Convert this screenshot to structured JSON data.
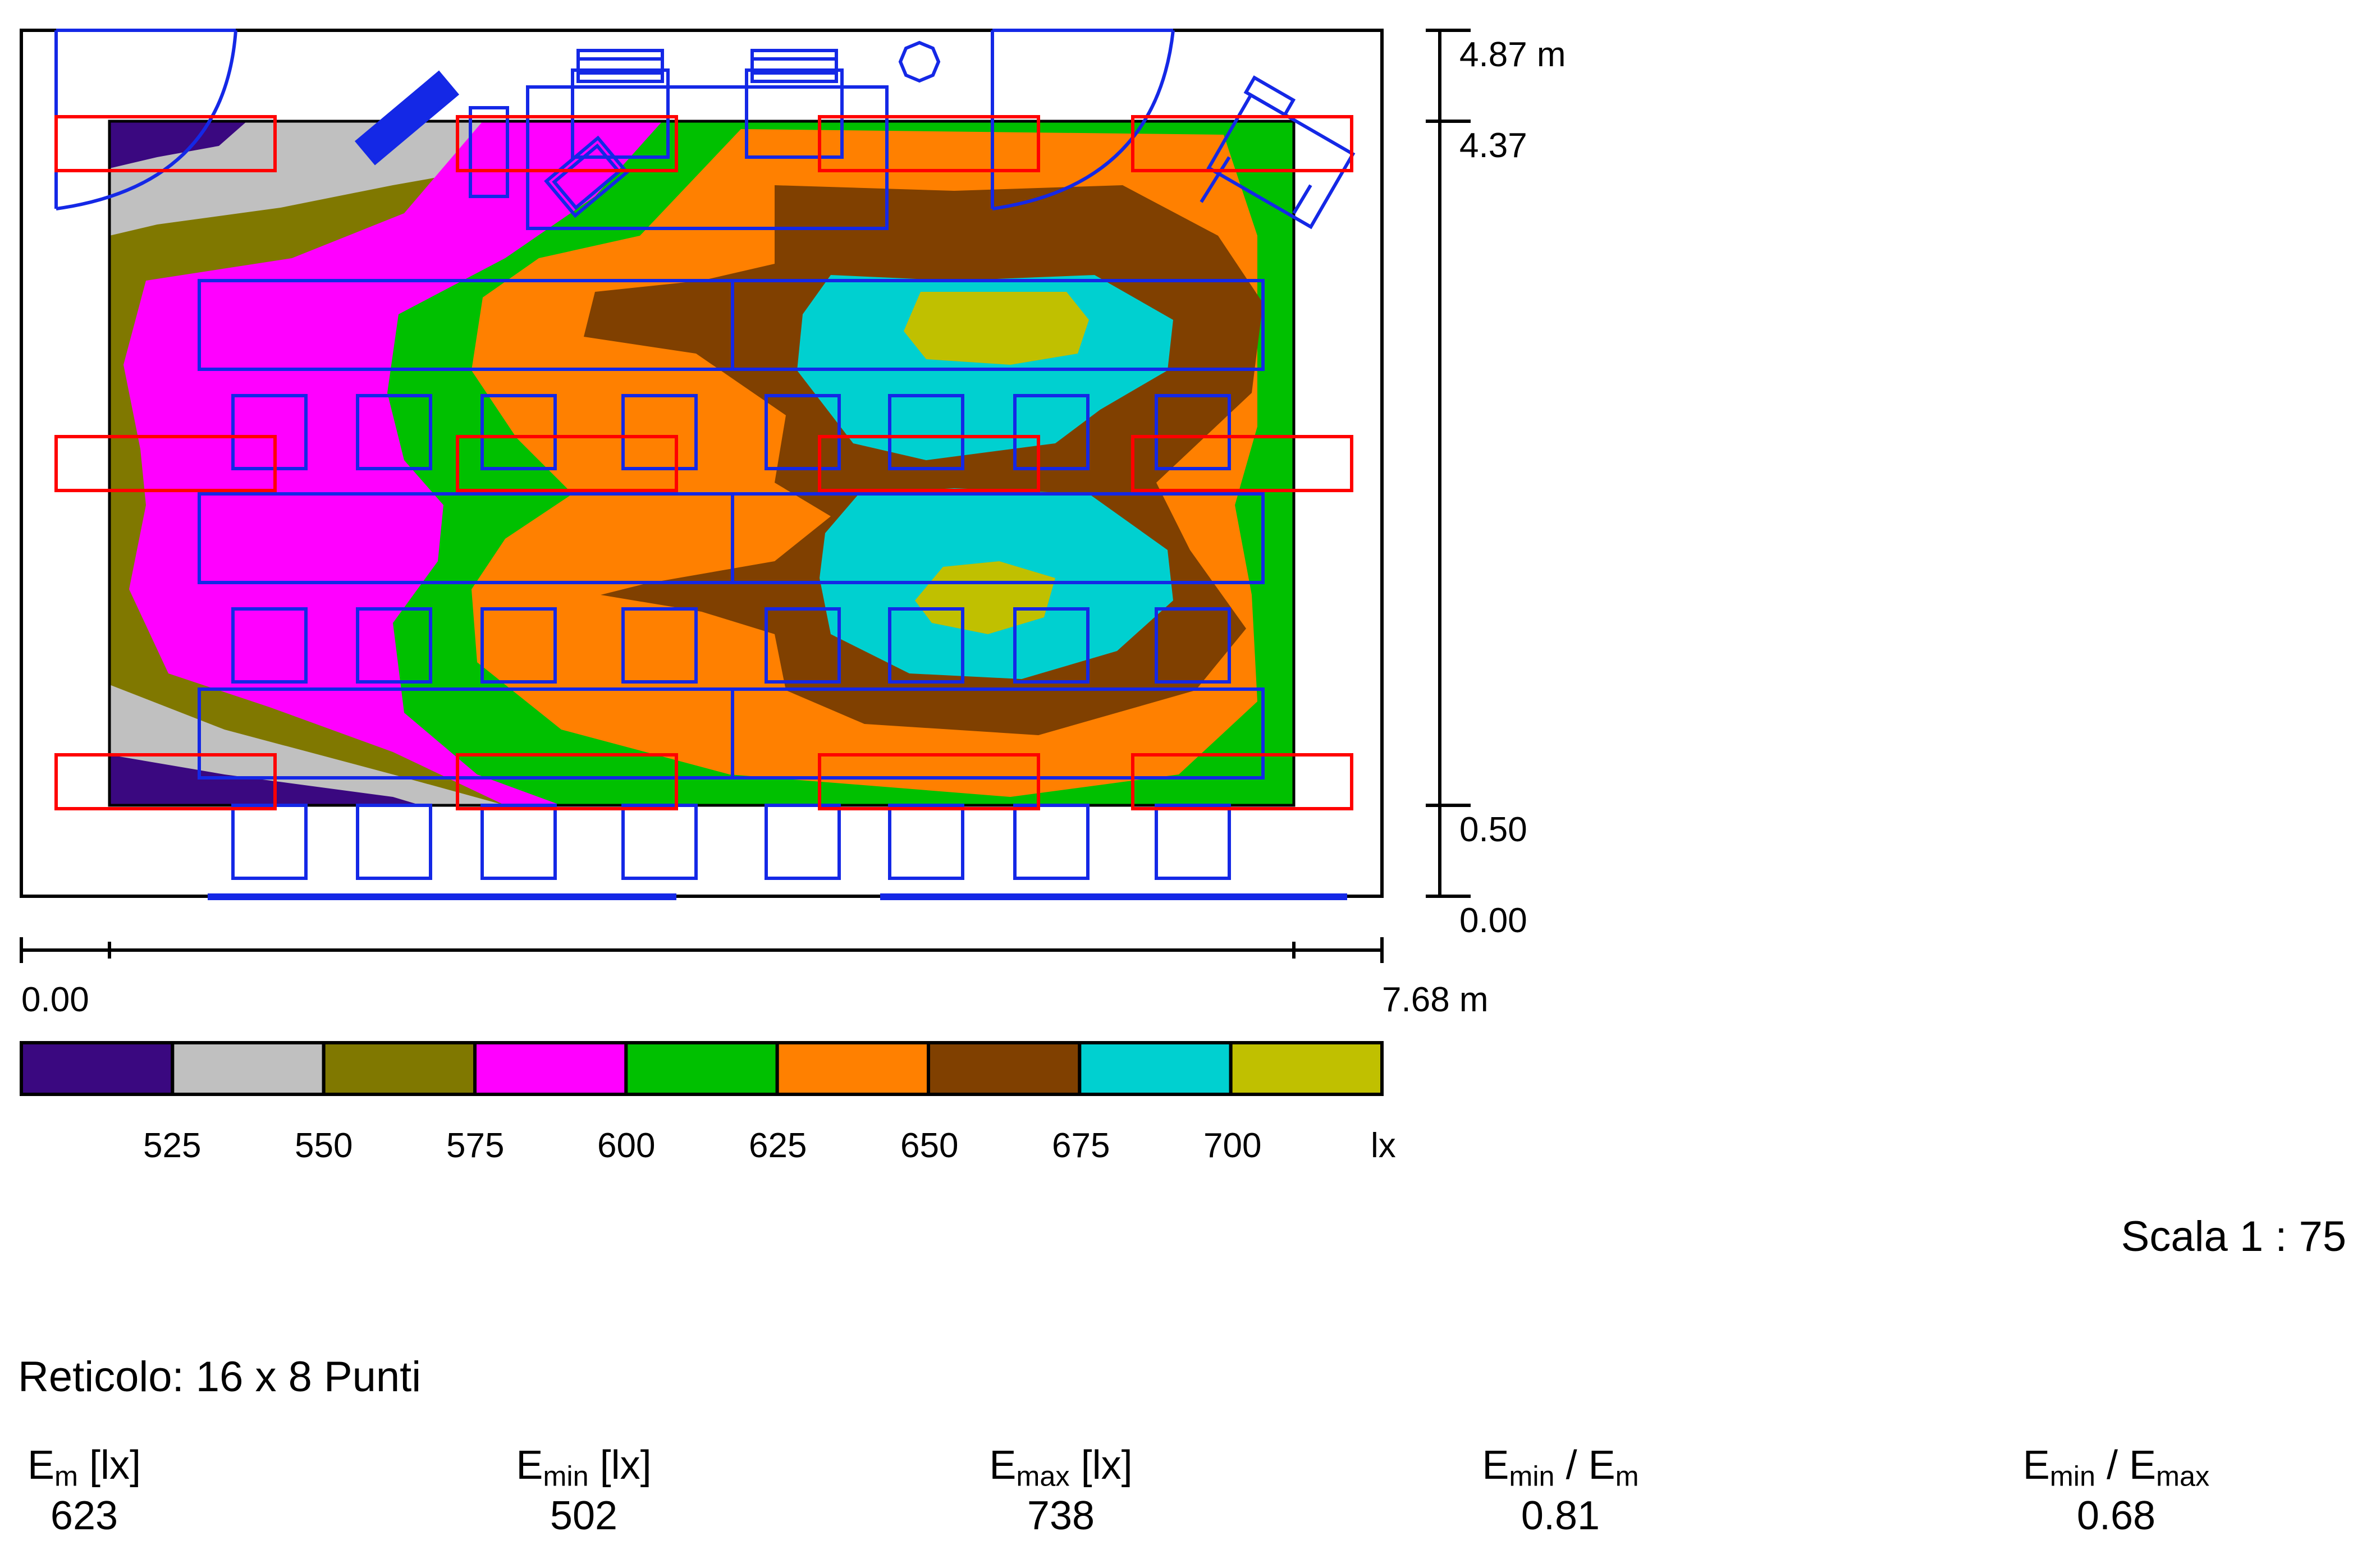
{
  "dims": {
    "top": "4.87",
    "top_unit": "m",
    "top2": "4.37",
    "bottom2": "0.50",
    "bottom": "0.00",
    "x_start": "0.00",
    "x_end": "7.68",
    "x_unit": "m"
  },
  "legend": {
    "colors": [
      "#3a0880",
      "#c0c0c0",
      "#807800",
      "#ff00ff",
      "#00c000",
      "#ff8000",
      "#804000",
      "#00d0d0",
      "#c0c000"
    ],
    "ticks": [
      "525",
      "550",
      "575",
      "600",
      "625",
      "650",
      "675",
      "700"
    ],
    "unit": "lx"
  },
  "scale": "Scala 1 : 75",
  "grid": "Reticolo: 16 x 8 Punti",
  "stats": [
    {
      "label": "E",
      "sub": "m",
      "suffix": " [lx]",
      "value": "623"
    },
    {
      "label": "E",
      "sub": "min",
      "suffix": " [lx]",
      "value": "502"
    },
    {
      "label": "E",
      "sub": "max",
      "suffix": " [lx]",
      "value": "738"
    },
    {
      "label": "E",
      "sub": "min",
      "mid": " / E",
      "sub2": "m",
      "value": "0.81"
    },
    {
      "label": "E",
      "sub": "min",
      "mid": " / E",
      "sub2": "max",
      "value": "0.68"
    }
  ]
}
